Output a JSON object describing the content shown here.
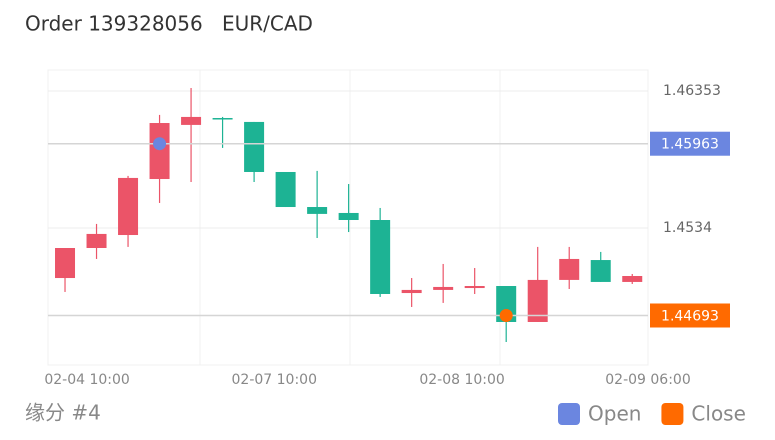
{
  "title": "Order 139328056",
  "symbol": "EUR/CAD",
  "footer": "缘分 #4",
  "chart_data": {
    "type": "candlestick",
    "x": [
      0,
      1,
      2,
      3,
      4,
      5,
      6,
      7,
      8,
      9,
      10,
      11,
      12,
      13,
      14,
      15,
      16,
      17,
      18
    ],
    "open": [
      1.4497,
      1.45192,
      1.45288,
      1.45702,
      1.46102,
      1.46153,
      1.46124,
      1.45754,
      1.45495,
      1.45451,
      1.45399,
      1.44859,
      1.44882,
      1.44896,
      1.44911,
      1.44645,
      1.44956,
      1.45103,
      1.44941
    ],
    "high": [
      1.45192,
      1.4537,
      1.45725,
      1.46176,
      1.46375,
      1.46161,
      1.46124,
      1.45754,
      1.45762,
      1.45665,
      1.45488,
      1.4497,
      1.45074,
      1.45044,
      1.44911,
      1.452,
      1.452,
      1.45163,
      1.45
    ],
    "low": [
      1.44867,
      1.45111,
      1.452,
      1.45525,
      1.4568,
      1.45932,
      1.4568,
      1.45495,
      1.45266,
      1.4531,
      1.4483,
      1.44756,
      1.44786,
      1.44852,
      1.44497,
      1.44645,
      1.44889,
      1.44941,
      1.44926
    ],
    "close": [
      1.45192,
      1.45296,
      1.4571,
      1.46116,
      1.46161,
      1.46146,
      1.45754,
      1.45495,
      1.45444,
      1.45399,
      1.44852,
      1.44882,
      1.44904,
      1.44911,
      1.44645,
      1.44956,
      1.45111,
      1.44941,
      1.44985
    ],
    "up_color": "#eb5468",
    "down_color": "#1db394",
    "xlim": [
      -0.54,
      18.5
    ],
    "xticks": [
      {
        "value": 0.7,
        "label": "02-04 10:00"
      },
      {
        "value": 6.64,
        "label": "02-07 10:00"
      },
      {
        "value": 12.6,
        "label": "02-08 10:00"
      },
      {
        "value": 18.5,
        "label": "02-09 06:00"
      }
    ],
    "ylim": [
      1.44327,
      1.46508
    ],
    "yticks": [
      1.46353,
      1.4534
    ],
    "grid": true,
    "markers": [
      {
        "name": "Open",
        "color": "#6b86e0",
        "x": 3,
        "value": 1.45963
      },
      {
        "name": "Close",
        "color": "#ff6a00",
        "x": 14,
        "value": 1.44693
      }
    ]
  }
}
